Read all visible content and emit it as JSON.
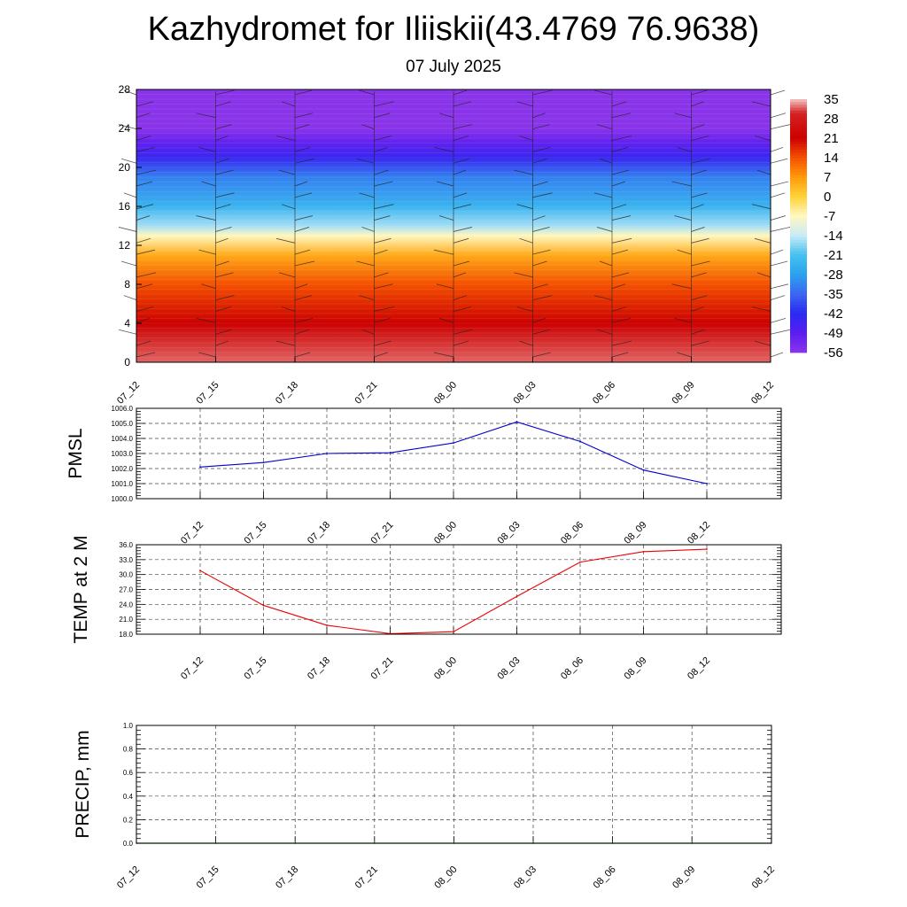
{
  "header": {
    "title": "Kazhydromet for Iliiskii(43.4769 76.9638)",
    "subtitle": "07 July 2025"
  },
  "chart_data": [
    {
      "type": "heatmap",
      "panel": "cross-section",
      "x": [
        "07_12",
        "07_15",
        "07_18",
        "07_21",
        "08_00",
        "08_03",
        "08_06",
        "08_09",
        "08_12"
      ],
      "yticks": [
        "0",
        "4",
        "8",
        "12",
        "16",
        "20",
        "24",
        "28"
      ],
      "ylim": [
        0,
        28
      ],
      "colorbar_labels": [
        "35",
        "28",
        "21",
        "14",
        "7",
        "0",
        "-7",
        "-14",
        "-21",
        "-28",
        "-35",
        "-42",
        "-49",
        "-56"
      ],
      "color_stops": [
        {
          "level": 35,
          "color": "#f4c6c6"
        },
        {
          "level": 30,
          "color": "#d42222"
        },
        {
          "level": 21,
          "color": "#cc0000"
        },
        {
          "level": 14,
          "color": "#f45000"
        },
        {
          "level": 7,
          "color": "#ff9a0a"
        },
        {
          "level": 0,
          "color": "#ffd23a"
        },
        {
          "level": -7,
          "color": "#fff8c0"
        },
        {
          "level": -14,
          "color": "#c8eaf8"
        },
        {
          "level": -21,
          "color": "#46c0f0"
        },
        {
          "level": -28,
          "color": "#2aa2ee"
        },
        {
          "level": -35,
          "color": "#3c66f2"
        },
        {
          "level": -42,
          "color": "#2a2af0"
        },
        {
          "level": -49,
          "color": "#5a1ef0"
        },
        {
          "level": -56,
          "color": "#8a34ea"
        }
      ],
      "vertical_bands": [
        {
          "y": 0,
          "value": 32
        },
        {
          "y": 4,
          "value": 21
        },
        {
          "y": 8,
          "value": 14
        },
        {
          "y": 11,
          "value": 5
        },
        {
          "y": 13,
          "value": -7
        },
        {
          "y": 14,
          "value": -16
        },
        {
          "y": 16,
          "value": -24
        },
        {
          "y": 19,
          "value": -32
        },
        {
          "y": 21,
          "value": -44
        },
        {
          "y": 22.5,
          "value": -50
        },
        {
          "y": 24,
          "value": -56
        },
        {
          "y": 28,
          "value": -56
        }
      ]
    },
    {
      "type": "line",
      "panel": "pmsl",
      "ylabel": "PMSL",
      "x": [
        "07_12",
        "07_15",
        "07_18",
        "07_21",
        "08_00",
        "08_03",
        "08_06",
        "08_09",
        "08_12"
      ],
      "values": [
        1002.1,
        1002.4,
        1003.0,
        1003.05,
        1003.7,
        1005.1,
        1003.8,
        1001.9,
        1001.0
      ],
      "ylim": [
        1000.0,
        1006.0
      ],
      "yticks": [
        "1000.0",
        "1001.0",
        "1002.0",
        "1003.0",
        "1004.0",
        "1005.0",
        "1006.0"
      ],
      "color": "#0000cc",
      "grid": true
    },
    {
      "type": "line",
      "panel": "temp",
      "ylabel": "TEMP at 2 M",
      "x": [
        "07_12",
        "07_15",
        "07_18",
        "07_21",
        "08_00",
        "08_03",
        "08_06",
        "08_09",
        "08_12"
      ],
      "values": [
        30.8,
        23.8,
        19.8,
        18.1,
        18.5,
        25.6,
        32.5,
        34.6,
        35.1
      ],
      "ylim": [
        18.0,
        36.0
      ],
      "yticks": [
        "18.0",
        "21.0",
        "24.0",
        "27.0",
        "30.0",
        "33.0",
        "36.0"
      ],
      "color": "#ee0000",
      "grid": true
    },
    {
      "type": "line",
      "panel": "precip",
      "ylabel": "PRECIP, mm",
      "x": [
        "07_12",
        "07_15",
        "07_18",
        "07_21",
        "08_00",
        "08_03",
        "08_06",
        "08_09",
        "08_12"
      ],
      "values": [
        0,
        0,
        0,
        0,
        0,
        0,
        0,
        0,
        0
      ],
      "ylim": [
        0.0,
        1.0
      ],
      "yticks": [
        "0.0",
        "0.2",
        "0.4",
        "0.6",
        "0.8",
        "1.0"
      ],
      "color": "#007700",
      "grid": true
    }
  ]
}
